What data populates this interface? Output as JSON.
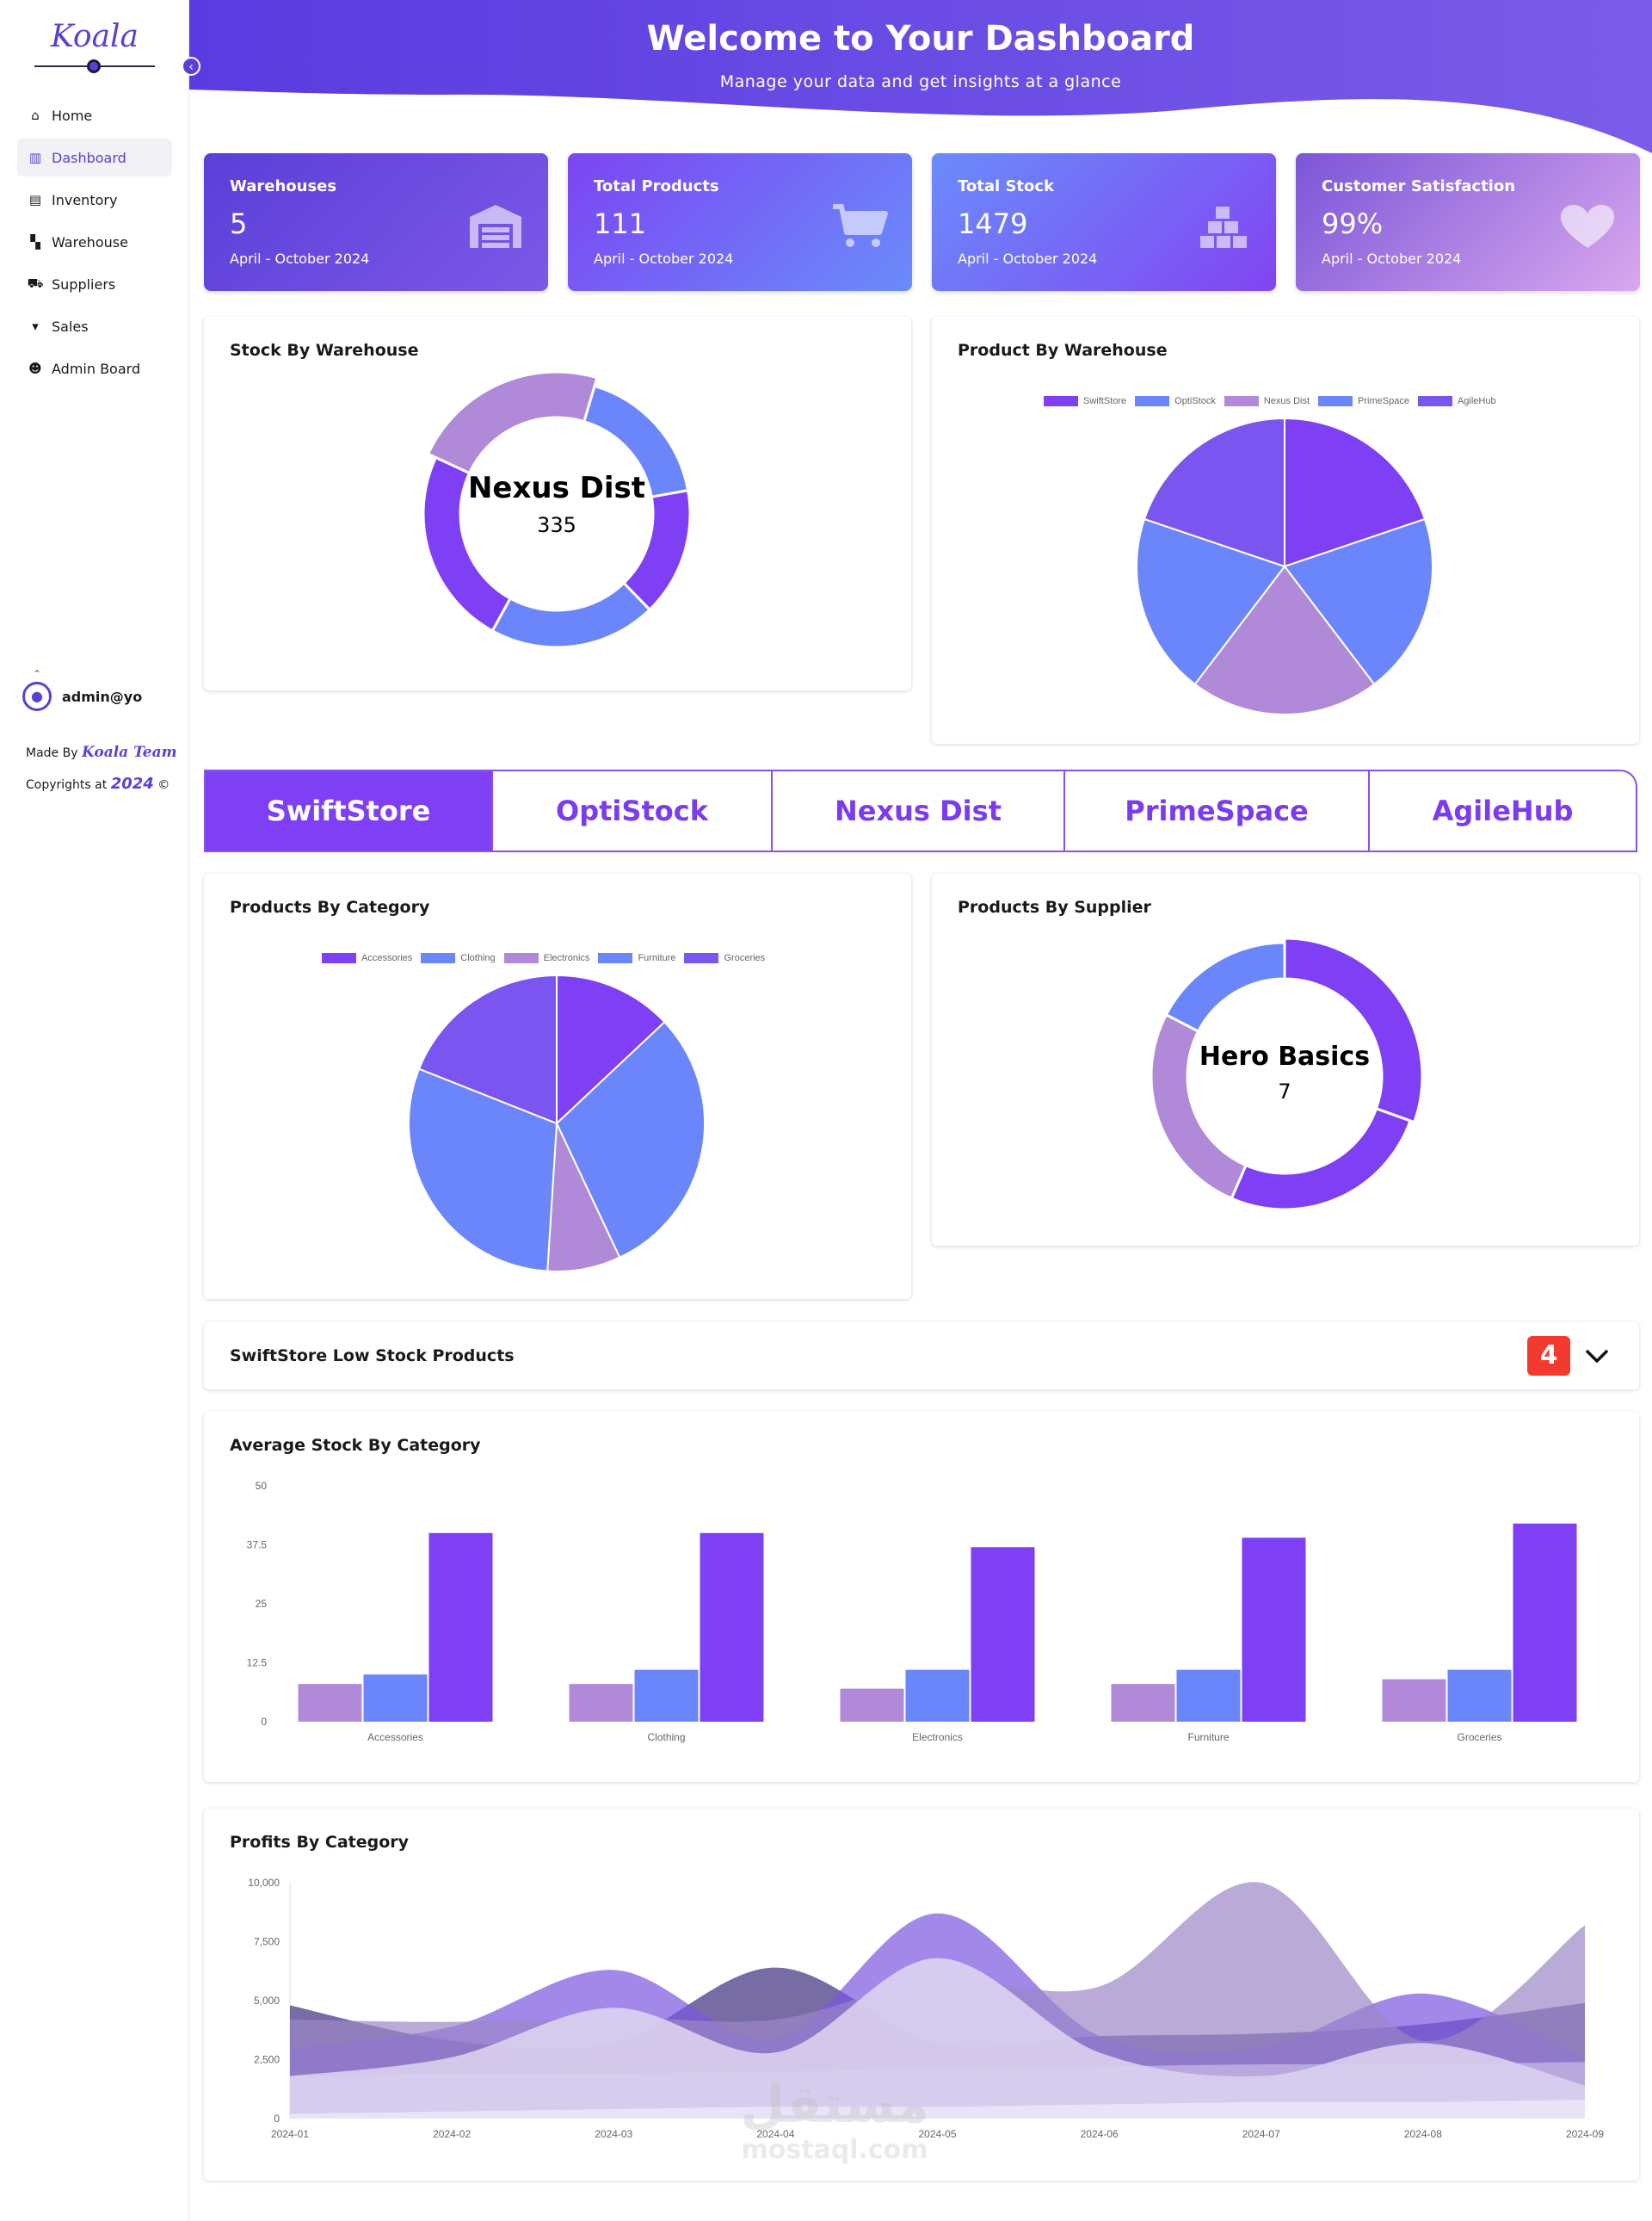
{
  "brand": {
    "logo": "Koala"
  },
  "sidebar": {
    "items": [
      {
        "label": "Home",
        "icon": "home-icon"
      },
      {
        "label": "Dashboard",
        "icon": "chart-icon"
      },
      {
        "label": "Inventory",
        "icon": "warehouse-icon"
      },
      {
        "label": "Warehouse",
        "icon": "boxes-icon"
      },
      {
        "label": "Suppliers",
        "icon": "truck-icon"
      },
      {
        "label": "Sales",
        "icon": "cart-icon"
      },
      {
        "label": "Admin Board",
        "icon": "users-icon"
      }
    ],
    "active": "Dashboard",
    "user": "admin@yo",
    "made_by_prefix": "Made By",
    "made_by_team": "Koala Team",
    "copyright_prefix": "Copyrights at",
    "copyright_year": "2024",
    "copyright_symbol": "©"
  },
  "header": {
    "title": "Welcome to Your Dashboard",
    "subtitle": "Manage your data and get insights at a glance"
  },
  "stats": [
    {
      "title": "Warehouses",
      "value": "5",
      "date": "April - October 2024",
      "icon": "warehouse-icon"
    },
    {
      "title": "Total Products",
      "value": "111",
      "date": "April - October 2024",
      "icon": "cart-icon"
    },
    {
      "title": "Total Stock",
      "value": "1479",
      "date": "April - October 2024",
      "icon": "boxes-icon"
    },
    {
      "title": "Customer Satisfaction",
      "value": "99%",
      "date": "April - October 2024",
      "icon": "heart-icon"
    }
  ],
  "colors": {
    "purple": "#7f3ff5",
    "blue": "#6b86fb",
    "lavender": "#b08ad8",
    "periwinkle": "#6b86fb",
    "violet": "#7b55f0"
  },
  "tabs": [
    "SwiftStore",
    "OptiStock",
    "Nexus Dist",
    "PrimeSpace",
    "AgileHub"
  ],
  "active_tab": "SwiftStore",
  "low_stock": {
    "title": "SwiftStore Low Stock Products",
    "count": "4"
  },
  "watermark": {
    "arabic": "مستقل",
    "latin": "mostaql.com"
  },
  "chart_data": [
    {
      "id": "stock-by-warehouse",
      "type": "pie",
      "variant": "doughnut",
      "title": "Stock By Warehouse",
      "center_label": "Nexus Dist",
      "center_value": "335",
      "slices": [
        {
          "value": 335,
          "color": "#b08ad8",
          "start_deg": 295
        },
        {
          "value": 260,
          "color": "#6b86fb"
        },
        {
          "value": 230,
          "color": "#7f3ff5"
        },
        {
          "value": 300,
          "color": "#6b86fb"
        },
        {
          "value": 354,
          "color": "#7f3ff5"
        }
      ]
    },
    {
      "id": "product-by-warehouse",
      "type": "pie",
      "title": "Product By Warehouse",
      "labels": [
        "SwiftStore",
        "OptiStock",
        "Nexus Dist",
        "PrimeSpace",
        "AgileHub"
      ],
      "values": [
        22,
        22,
        23,
        22,
        22
      ],
      "colors": [
        "#7f3ff5",
        "#6b86fb",
        "#b08ad8",
        "#6b86fb",
        "#7b55f0"
      ],
      "legend": "top"
    },
    {
      "id": "products-by-category",
      "type": "pie",
      "title": "Products By Category",
      "labels": [
        "Accessories",
        "Clothing",
        "Electronics",
        "Furniture",
        "Groceries"
      ],
      "values": [
        13,
        30,
        8,
        30,
        19
      ],
      "colors": [
        "#7f3ff5",
        "#6b86fb",
        "#b08ad8",
        "#6b86fb",
        "#7b55f0"
      ],
      "legend": "top"
    },
    {
      "id": "products-by-supplier",
      "type": "pie",
      "variant": "doughnut",
      "title": "Products By Supplier",
      "center_label": "Hero Basics",
      "center_value": "7",
      "slices": [
        {
          "value": 7,
          "color": "#7f3ff5",
          "start_deg": 0
        },
        {
          "value": 6,
          "color": "#7f3ff5"
        },
        {
          "value": 6,
          "color": "#b08ad8"
        },
        {
          "value": 4,
          "color": "#6b86fb"
        }
      ]
    },
    {
      "id": "average-stock-by-category",
      "type": "bar",
      "title": "Average Stock By Category",
      "categories": [
        "Accessories",
        "Clothing",
        "Electronics",
        "Furniture",
        "Groceries"
      ],
      "series": [
        {
          "values": [
            8,
            8,
            7,
            8,
            9
          ],
          "color": "#b08ad8"
        },
        {
          "values": [
            10,
            11,
            11,
            11,
            11
          ],
          "color": "#6b86fb"
        },
        {
          "values": [
            40,
            40,
            37,
            39,
            42
          ],
          "color": "#7f3ff5"
        }
      ],
      "ylim": [
        0,
        50
      ],
      "yticks": [
        "0",
        "12.5",
        "25",
        "37.5",
        "50"
      ]
    },
    {
      "id": "profits-by-category",
      "type": "area",
      "title": "Profits By Category",
      "x": [
        "2024-01",
        "2024-02",
        "2024-03",
        "2024-04",
        "2024-05",
        "2024-06",
        "2024-07",
        "2024-08",
        "2024-09"
      ],
      "ylim": [
        0,
        10000
      ],
      "yticks": [
        "0",
        "2,500",
        "5,000",
        "7,500",
        "10,000"
      ],
      "series": [
        {
          "values": [
            4800,
            3300,
            3200,
            6400,
            3200,
            3500,
            3600,
            4000,
            4900
          ],
          "color": "#4a3b86",
          "opacity": 0.75
        },
        {
          "values": [
            3000,
            3900,
            6300,
            3400,
            8700,
            3500,
            3000,
            5300,
            2600
          ],
          "color": "#7b55e0",
          "opacity": 0.7
        },
        {
          "values": [
            4200,
            4100,
            4300,
            4200,
            5900,
            5600,
            10000,
            3300,
            8200
          ],
          "color": "#9b86c8",
          "opacity": 0.7
        },
        {
          "values": [
            1800,
            2600,
            4700,
            2800,
            6800,
            2800,
            1800,
            3200,
            1400
          ],
          "color": "#e3dcf2",
          "opacity": 0.8
        },
        {
          "values": [
            1800,
            1900,
            1900,
            2000,
            2100,
            2200,
            2300,
            2300,
            2400
          ],
          "color": "#d9d0ef",
          "opacity": 0.55
        },
        {
          "values": [
            200,
            300,
            400,
            500,
            500,
            600,
            700,
            700,
            800
          ],
          "color": "#f1ecfb",
          "opacity": 0.7
        }
      ]
    }
  ]
}
